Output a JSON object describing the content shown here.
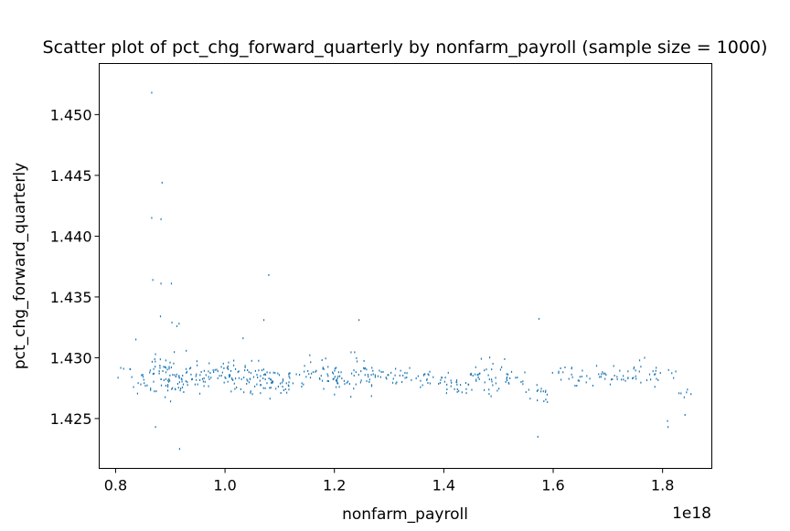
{
  "chart_data": {
    "type": "scatter",
    "title": "Scatter plot of pct_chg_forward_quarterly by nonfarm_payroll (sample size = 1000)",
    "xlabel": "nonfarm_payroll",
    "ylabel": "pct_chg_forward_quarterly",
    "x_offset_label": "1e18",
    "xlim": [
      0.77,
      1.89
    ],
    "ylim": [
      1.4209,
      1.4542
    ],
    "x_ticks": [
      0.8,
      1.0,
      1.2,
      1.4,
      1.6,
      1.8
    ],
    "x_tick_labels": [
      "0.8",
      "1.0",
      "1.2",
      "1.4",
      "1.6",
      "1.8"
    ],
    "y_ticks": [
      1.425,
      1.43,
      1.435,
      1.44,
      1.445,
      1.45
    ],
    "y_tick_labels": [
      "1.425",
      "1.430",
      "1.435",
      "1.440",
      "1.445",
      "1.450"
    ],
    "marker_color": "#1f77b4",
    "grid": false,
    "legend": "none",
    "outliers": [
      {
        "x": 0.866,
        "y": 1.4518
      },
      {
        "x": 0.866,
        "y": 1.4415
      },
      {
        "x": 0.885,
        "y": 1.4444
      },
      {
        "x": 0.883,
        "y": 1.4414
      },
      {
        "x": 0.868,
        "y": 1.4364
      },
      {
        "x": 0.883,
        "y": 1.4361
      },
      {
        "x": 0.902,
        "y": 1.4361
      },
      {
        "x": 0.882,
        "y": 1.4334
      },
      {
        "x": 0.903,
        "y": 1.4329
      },
      {
        "x": 0.912,
        "y": 1.4326
      },
      {
        "x": 0.916,
        "y": 1.4328
      },
      {
        "x": 1.08,
        "y": 1.4368
      },
      {
        "x": 1.071,
        "y": 1.4331
      },
      {
        "x": 1.033,
        "y": 1.4316
      },
      {
        "x": 1.245,
        "y": 1.4331
      },
      {
        "x": 1.574,
        "y": 1.4332
      },
      {
        "x": 0.837,
        "y": 1.4315
      },
      {
        "x": 0.917,
        "y": 1.4225
      },
      {
        "x": 0.873,
        "y": 1.4243
      },
      {
        "x": 1.572,
        "y": 1.4235
      },
      {
        "x": 1.81,
        "y": 1.4243
      },
      {
        "x": 1.809,
        "y": 1.4248
      },
      {
        "x": 1.841,
        "y": 1.4253
      }
    ],
    "clusters": [
      {
        "x": 0.82,
        "y": 1.4285,
        "spread": 0.0009,
        "n": 7
      },
      {
        "x": 0.85,
        "y": 1.428,
        "spread": 0.001,
        "n": 12
      },
      {
        "x": 0.88,
        "y": 1.4285,
        "spread": 0.0013,
        "n": 34
      },
      {
        "x": 0.91,
        "y": 1.4285,
        "spread": 0.0015,
        "n": 40
      },
      {
        "x": 0.95,
        "y": 1.4283,
        "spread": 0.001,
        "n": 28
      },
      {
        "x": 0.99,
        "y": 1.4288,
        "spread": 0.0008,
        "n": 30
      },
      {
        "x": 1.03,
        "y": 1.4285,
        "spread": 0.001,
        "n": 34
      },
      {
        "x": 1.07,
        "y": 1.4282,
        "spread": 0.0012,
        "n": 34
      },
      {
        "x": 1.1,
        "y": 1.428,
        "spread": 0.001,
        "n": 22
      },
      {
        "x": 1.13,
        "y": 1.4283,
        "spread": 0.0008,
        "n": 12
      },
      {
        "x": 1.16,
        "y": 1.429,
        "spread": 0.0012,
        "n": 18
      },
      {
        "x": 1.19,
        "y": 1.4285,
        "spread": 0.0009,
        "n": 20
      },
      {
        "x": 1.22,
        "y": 1.428,
        "spread": 0.0008,
        "n": 20
      },
      {
        "x": 1.25,
        "y": 1.429,
        "spread": 0.0014,
        "n": 24
      },
      {
        "x": 1.28,
        "y": 1.4285,
        "spread": 0.0006,
        "n": 16
      },
      {
        "x": 1.32,
        "y": 1.4285,
        "spread": 0.0006,
        "n": 16
      },
      {
        "x": 1.36,
        "y": 1.4283,
        "spread": 0.0006,
        "n": 16
      },
      {
        "x": 1.4,
        "y": 1.428,
        "spread": 0.0007,
        "n": 16
      },
      {
        "x": 1.44,
        "y": 1.4278,
        "spread": 0.0007,
        "n": 18
      },
      {
        "x": 1.47,
        "y": 1.4283,
        "spread": 0.0012,
        "n": 22
      },
      {
        "x": 1.5,
        "y": 1.4285,
        "spread": 0.0012,
        "n": 20
      },
      {
        "x": 1.53,
        "y": 1.4283,
        "spread": 0.0006,
        "n": 8
      },
      {
        "x": 1.57,
        "y": 1.427,
        "spread": 0.001,
        "n": 16
      },
      {
        "x": 1.61,
        "y": 1.4285,
        "spread": 0.0005,
        "n": 8
      },
      {
        "x": 1.65,
        "y": 1.4283,
        "spread": 0.0007,
        "n": 14
      },
      {
        "x": 1.69,
        "y": 1.4283,
        "spread": 0.0007,
        "n": 14
      },
      {
        "x": 1.73,
        "y": 1.4285,
        "spread": 0.0009,
        "n": 16
      },
      {
        "x": 1.77,
        "y": 1.4285,
        "spread": 0.001,
        "n": 18
      },
      {
        "x": 1.81,
        "y": 1.4285,
        "spread": 0.0006,
        "n": 6
      },
      {
        "x": 1.84,
        "y": 1.427,
        "spread": 0.0004,
        "n": 6
      }
    ]
  }
}
